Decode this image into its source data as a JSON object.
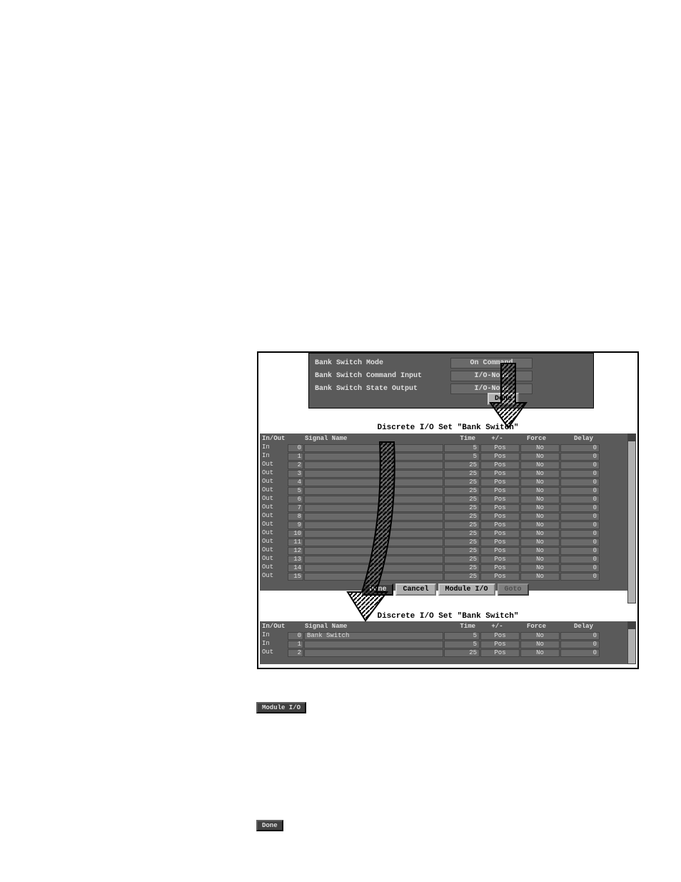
{
  "top_panel": {
    "rows": [
      {
        "label": "Bank Switch Mode",
        "value": "On Command"
      },
      {
        "label": "Bank Switch Command Input",
        "value": "I/O-None"
      },
      {
        "label": "Bank Switch State Output",
        "value": "I/O-None"
      }
    ],
    "done": "Done"
  },
  "section_title": "Discrete I/O Set \"Bank Switch\"",
  "headers": {
    "inout": "In/Out",
    "signal": "Signal Name",
    "time": "Time",
    "pm": "+/-",
    "force": "Force",
    "delay": "Delay"
  },
  "table1_rows": [
    {
      "io": "In",
      "n": "0",
      "sig": "",
      "time": "5",
      "pm": "Pos",
      "force": "No",
      "delay": "0"
    },
    {
      "io": "In",
      "n": "1",
      "sig": "",
      "time": "5",
      "pm": "Pos",
      "force": "No",
      "delay": "0"
    },
    {
      "io": "Out",
      "n": "2",
      "sig": "",
      "time": "25",
      "pm": "Pos",
      "force": "No",
      "delay": "0"
    },
    {
      "io": "Out",
      "n": "3",
      "sig": "",
      "time": "25",
      "pm": "Pos",
      "force": "No",
      "delay": "0"
    },
    {
      "io": "Out",
      "n": "4",
      "sig": "",
      "time": "25",
      "pm": "Pos",
      "force": "No",
      "delay": "0"
    },
    {
      "io": "Out",
      "n": "5",
      "sig": "",
      "time": "25",
      "pm": "Pos",
      "force": "No",
      "delay": "0"
    },
    {
      "io": "Out",
      "n": "6",
      "sig": "",
      "time": "25",
      "pm": "Pos",
      "force": "No",
      "delay": "0"
    },
    {
      "io": "Out",
      "n": "7",
      "sig": "",
      "time": "25",
      "pm": "Pos",
      "force": "No",
      "delay": "0"
    },
    {
      "io": "Out",
      "n": "8",
      "sig": "",
      "time": "25",
      "pm": "Pos",
      "force": "No",
      "delay": "0"
    },
    {
      "io": "Out",
      "n": "9",
      "sig": "",
      "time": "25",
      "pm": "Pos",
      "force": "No",
      "delay": "0"
    },
    {
      "io": "Out",
      "n": "10",
      "sig": "",
      "time": "25",
      "pm": "Pos",
      "force": "No",
      "delay": "0"
    },
    {
      "io": "Out",
      "n": "11",
      "sig": "",
      "time": "25",
      "pm": "Pos",
      "force": "No",
      "delay": "0"
    },
    {
      "io": "Out",
      "n": "12",
      "sig": "",
      "time": "25",
      "pm": "Pos",
      "force": "No",
      "delay": "0"
    },
    {
      "io": "Out",
      "n": "13",
      "sig": "",
      "time": "25",
      "pm": "Pos",
      "force": "No",
      "delay": "0"
    },
    {
      "io": "Out",
      "n": "14",
      "sig": "",
      "time": "25",
      "pm": "Pos",
      "force": "No",
      "delay": "0"
    },
    {
      "io": "Out",
      "n": "15",
      "sig": "",
      "time": "25",
      "pm": "Pos",
      "force": "No",
      "delay": "0"
    }
  ],
  "table2_rows": [
    {
      "io": "In",
      "n": "0",
      "sig": "Bank Switch",
      "time": "5",
      "pm": "Pos",
      "force": "No",
      "delay": "0"
    },
    {
      "io": "In",
      "n": "1",
      "sig": "",
      "time": "5",
      "pm": "Pos",
      "force": "No",
      "delay": "0"
    },
    {
      "io": "Out",
      "n": "2",
      "sig": "",
      "time": "25",
      "pm": "Pos",
      "force": "No",
      "delay": "0"
    }
  ],
  "buttons": {
    "done": "Done",
    "cancel": "Cancel",
    "module_io": "Module I/O",
    "goto": "Goto"
  },
  "inline": {
    "module_io": "Module I/O",
    "done": "Done"
  }
}
